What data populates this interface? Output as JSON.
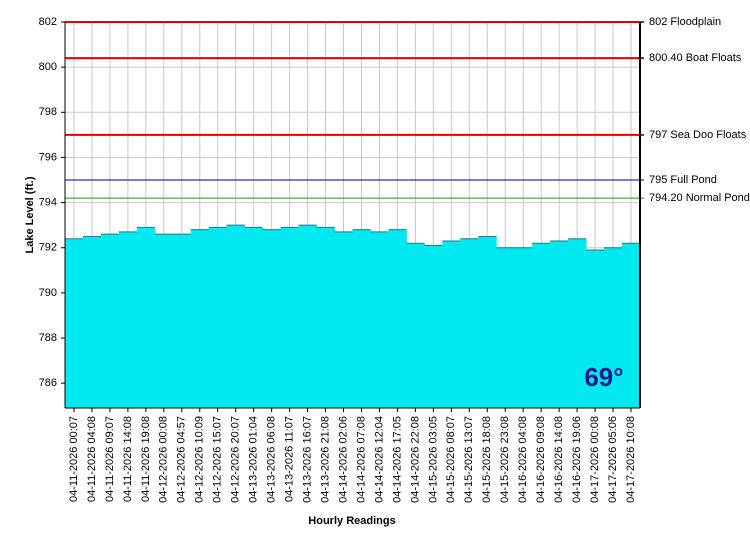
{
  "chart_data": {
    "type": "area",
    "y_label": "Lake Level (ft.)",
    "x_label": "Hourly Readings",
    "categories": [
      "04-11-2026 00:07",
      "04-11-2026 04:08",
      "04-11-2026 09:07",
      "04-11-2026 14:08",
      "04-11-2026 19:08",
      "04-12-2026 00:08",
      "04-12-2026 04:57",
      "04-12-2026 10:09",
      "04-12-2026 15:07",
      "04-12-2026 20:07",
      "04-13-2026 01:04",
      "04-13-2026 06:08",
      "04-13-2026 11:07",
      "04-13-2026 16:07",
      "04-13-2026 21:08",
      "04-14-2026 02:06",
      "04-14-2026 07:08",
      "04-14-2026 12:04",
      "04-14-2026 17:05",
      "04-14-2026 22:08",
      "04-15-2026 03:05",
      "04-15-2026 08:07",
      "04-15-2026 13:07",
      "04-15-2026 18:08",
      "04-15-2026 23:08",
      "04-16-2026 04:08",
      "04-16-2026 09:08",
      "04-16-2026 14:08",
      "04-16-2026 19:06",
      "04-17-2026 00:08",
      "04-17-2026 05:06",
      "04-17-2026 10:08"
    ],
    "values": [
      792.4,
      792.5,
      792.6,
      792.7,
      792.9,
      792.6,
      792.6,
      792.8,
      792.9,
      793.0,
      792.9,
      792.8,
      792.9,
      793.0,
      792.9,
      792.7,
      792.8,
      792.7,
      792.8,
      792.2,
      792.1,
      792.3,
      792.4,
      792.5,
      792.0,
      792.0,
      792.2,
      792.3,
      792.4,
      791.9,
      792.0,
      792.2
    ],
    "color": "#00e8f0",
    "ylim": [
      784.9,
      802
    ],
    "yticks": [
      786,
      788,
      790,
      792,
      794,
      796,
      798,
      800,
      802
    ],
    "grid": true,
    "reference_lines": [
      {
        "value": 802,
        "label": "802 Floodplain",
        "color": "#e00000"
      },
      {
        "value": 800.4,
        "label": "800.40 Boat Floats",
        "color": "#e00000"
      },
      {
        "value": 797,
        "label": "797 Sea Doo Floats",
        "color": "#e00000"
      },
      {
        "value": 795,
        "label": "795 Full Pond",
        "color": "#000080"
      },
      {
        "value": 794.2,
        "label": "794.20 Normal Pond",
        "color": "#2e8b2e"
      }
    ],
    "temperature": "69°"
  }
}
